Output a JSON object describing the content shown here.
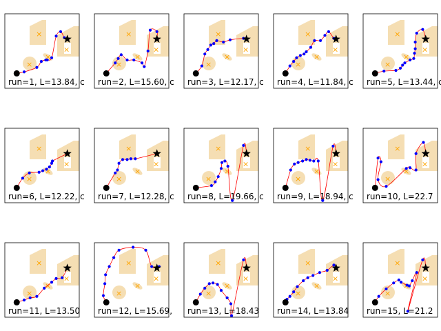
{
  "chart_data": {
    "type": "scatter",
    "layout": {
      "rows": 3,
      "cols": 5
    },
    "xlim": [
      0,
      10
    ],
    "ylim": [
      0,
      10
    ],
    "colors": {
      "obstacle": "#f5deb3",
      "obstacle_center": "#ffa500",
      "path": "#ff0000",
      "waypoint": "#0000ff",
      "start": "#000000",
      "goal": "#000000"
    },
    "start": [
      1.6,
      2.0
    ],
    "goal": [
      8.4,
      6.6
    ],
    "obstacles": {
      "centers": [
        [
          4.6,
          7.3
        ],
        [
          3.3,
          3.2
        ],
        [
          5.8,
          4.2
        ],
        [
          8.3,
          5.2
        ]
      ],
      "labels": [
        "×",
        "×",
        "×",
        "×"
      ]
    },
    "panels": [
      {
        "run": 1,
        "label": "run=1, L=13.84, c",
        "waypoints": [
          [
            2.6,
            2.2
          ],
          [
            4.3,
            2.8
          ],
          [
            4.9,
            3.6
          ],
          [
            5.5,
            3.8
          ],
          [
            5.7,
            3.8
          ],
          [
            6.3,
            4.1
          ],
          [
            6.9,
            7.0
          ],
          [
            7.5,
            7.6
          ],
          [
            8.0,
            6.8
          ]
        ]
      },
      {
        "run": 2,
        "label": "run=2, L=15.60, c",
        "waypoints": [
          [
            2.8,
            3.4
          ],
          [
            3.2,
            4.0
          ],
          [
            3.6,
            4.5
          ],
          [
            4.4,
            3.8
          ],
          [
            5.3,
            3.8
          ],
          [
            6.4,
            3.4
          ],
          [
            6.7,
            2.9
          ],
          [
            7.2,
            5.0
          ],
          [
            7.5,
            7.8
          ],
          [
            8.4,
            7.6
          ]
        ]
      },
      {
        "run": 3,
        "label": "run=3, L=12.17, c",
        "waypoints": [
          [
            2.4,
            3.0
          ],
          [
            2.8,
            4.6
          ],
          [
            3.2,
            5.2
          ],
          [
            3.6,
            5.8
          ],
          [
            4.0,
            6.0
          ],
          [
            4.4,
            6.4
          ],
          [
            5.3,
            6.2
          ],
          [
            6.2,
            6.5
          ],
          [
            8.0,
            6.7
          ]
        ]
      },
      {
        "run": 4,
        "label": "run=4, L=11.84, c",
        "waypoints": [
          [
            2.2,
            3.0
          ],
          [
            2.7,
            3.6
          ],
          [
            3.1,
            4.1
          ],
          [
            3.6,
            4.4
          ],
          [
            4.1,
            4.6
          ],
          [
            4.4,
            4.9
          ],
          [
            5.0,
            5.5
          ],
          [
            5.5,
            6.4
          ],
          [
            6.3,
            6.4
          ],
          [
            6.9,
            7.1
          ],
          [
            7.4,
            7.6
          ],
          [
            8.1,
            6.7
          ]
        ]
      },
      {
        "run": 5,
        "label": "run=5, L=13.44, c",
        "waypoints": [
          [
            2.8,
            2.3
          ],
          [
            4.4,
            2.4
          ],
          [
            5.0,
            2.7
          ],
          [
            5.3,
            3.1
          ],
          [
            5.6,
            3.4
          ],
          [
            6.3,
            3.8
          ],
          [
            6.8,
            4.0
          ],
          [
            6.9,
            4.7
          ],
          [
            7.0,
            5.3
          ],
          [
            7.0,
            6.2
          ],
          [
            7.2,
            7.4
          ],
          [
            8.0,
            7.9
          ]
        ]
      },
      {
        "run": 6,
        "label": "run=6, L=12.22, c",
        "waypoints": [
          [
            2.4,
            3.3
          ],
          [
            3.3,
            4.0
          ],
          [
            4.6,
            4.1
          ],
          [
            5.1,
            4.3
          ],
          [
            5.6,
            4.5
          ],
          [
            6.0,
            4.8
          ],
          [
            6.3,
            5.3
          ],
          [
            6.4,
            5.6
          ]
        ]
      },
      {
        "run": 7,
        "label": "run=7, L=12.28, c",
        "waypoints": [
          [
            2.8,
            4.0
          ],
          [
            3.1,
            4.4
          ],
          [
            3.3,
            5.3
          ],
          [
            3.8,
            5.8
          ],
          [
            4.4,
            5.8
          ],
          [
            4.9,
            5.9
          ],
          [
            5.5,
            5.9
          ]
        ]
      },
      {
        "run": 8,
        "label": "run=8, L=19.66, c",
        "waypoints": [
          [
            3.7,
            2.3
          ],
          [
            4.2,
            2.8
          ],
          [
            4.6,
            3.5
          ],
          [
            5.0,
            4.6
          ],
          [
            5.1,
            5.4
          ],
          [
            5.5,
            5.6
          ],
          [
            5.9,
            4.9
          ],
          [
            6.5,
            0.3
          ],
          [
            8.0,
            7.7
          ]
        ]
      },
      {
        "run": 9,
        "label": "run=9, L=18.94, c",
        "waypoints": [
          [
            2.3,
            4.4
          ],
          [
            2.8,
            5.2
          ],
          [
            3.3,
            5.4
          ],
          [
            3.9,
            5.6
          ],
          [
            4.4,
            5.8
          ],
          [
            4.9,
            5.7
          ],
          [
            5.4,
            5.6
          ],
          [
            6.0,
            5.6
          ],
          [
            6.6,
            0.3
          ],
          [
            8.0,
            7.6
          ]
        ]
      },
      {
        "run": 10,
        "label": "run=10, L=22.7",
        "waypoints": [
          [
            2.0,
            6.0
          ],
          [
            2.4,
            5.5
          ],
          [
            2.0,
            3.1
          ],
          [
            3.1,
            2.2
          ],
          [
            5.8,
            4.6
          ],
          [
            6.3,
            4.7
          ],
          [
            7.1,
            4.4
          ],
          [
            7.1,
            6.6
          ],
          [
            8.1,
            8.1
          ]
        ]
      },
      {
        "run": 11,
        "label": "run=11, L=13.50",
        "waypoints": [
          [
            2.6,
            2.3
          ],
          [
            3.4,
            2.6
          ],
          [
            4.3,
            2.8
          ],
          [
            5.3,
            3.9
          ],
          [
            6.3,
            4.7
          ],
          [
            6.9,
            5.2
          ],
          [
            7.7,
            5.3
          ]
        ]
      },
      {
        "run": 12,
        "label": "run=12, L=15.69,",
        "waypoints": [
          [
            1.2,
            2.9
          ],
          [
            1.4,
            4.5
          ],
          [
            1.5,
            5.7
          ],
          [
            2.0,
            6.8
          ],
          [
            2.6,
            8.0
          ],
          [
            3.3,
            9.0
          ],
          [
            5.2,
            9.4
          ],
          [
            6.9,
            9.0
          ],
          [
            7.7,
            6.8
          ],
          [
            8.7,
            6.8
          ]
        ]
      },
      {
        "run": 13,
        "label": "run=13, L=18.43",
        "waypoints": [
          [
            2.2,
            3.1
          ],
          [
            2.8,
            3.9
          ],
          [
            3.4,
            4.5
          ],
          [
            3.9,
            4.6
          ],
          [
            4.5,
            4.4
          ],
          [
            5.0,
            3.6
          ],
          [
            5.8,
            2.6
          ],
          [
            6.3,
            1.8
          ],
          [
            6.4,
            0.2
          ],
          [
            8.0,
            7.7
          ]
        ]
      },
      {
        "run": 14,
        "label": "run=14, L=13.84",
        "waypoints": [
          [
            1.8,
            2.4
          ],
          [
            2.2,
            2.8
          ],
          [
            2.7,
            3.4
          ],
          [
            3.2,
            4.1
          ],
          [
            4.0,
            4.9
          ],
          [
            4.6,
            5.3
          ],
          [
            5.3,
            5.6
          ],
          [
            6.2,
            6.0
          ],
          [
            7.2,
            6.3
          ],
          [
            8.1,
            7.0
          ]
        ]
      },
      {
        "run": 15,
        "label": "run=15, L=21.2",
        "waypoints": [
          [
            2.1,
            2.8
          ],
          [
            3.1,
            3.8
          ],
          [
            4.1,
            4.6
          ],
          [
            4.8,
            5.0
          ],
          [
            5.1,
            4.7
          ],
          [
            5.9,
            4.3
          ],
          [
            6.2,
            4.2
          ],
          [
            6.6,
            4.9
          ],
          [
            7.2,
            6.0
          ],
          [
            6.0,
            0.8
          ],
          [
            8.0,
            7.7
          ]
        ]
      }
    ]
  }
}
